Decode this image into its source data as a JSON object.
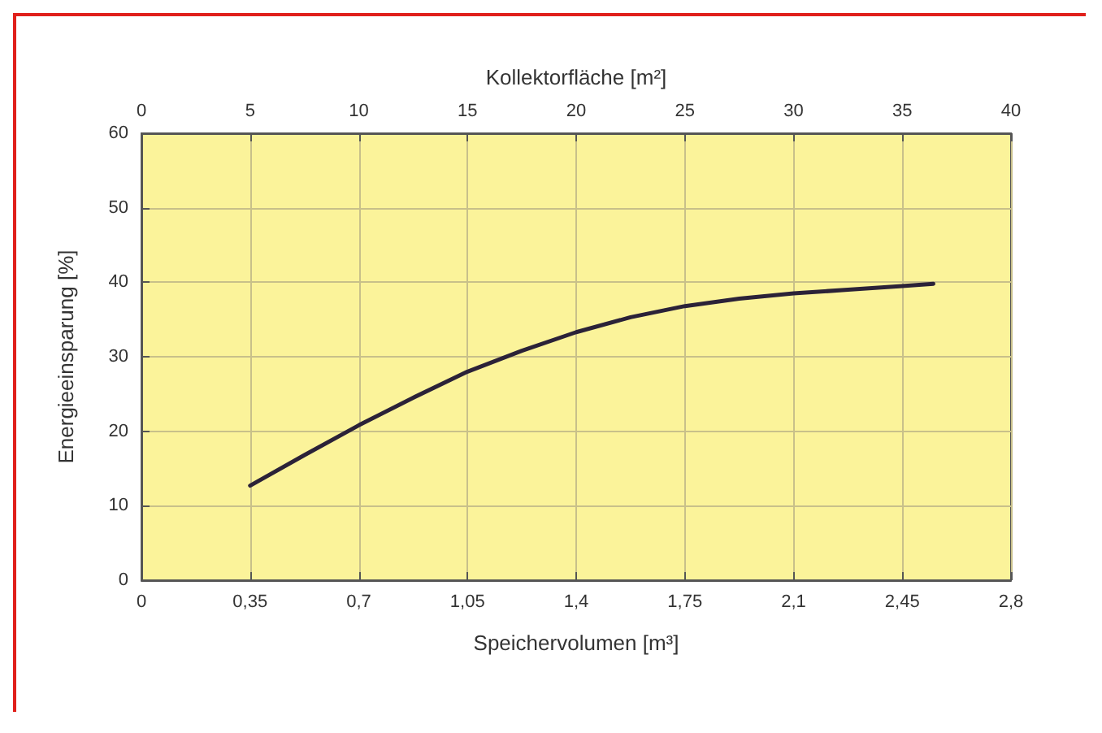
{
  "chart_data": {
    "type": "line",
    "xlabel": "Speichervolumen [m³]",
    "x2label": "Kollektorfläche [m²]",
    "ylabel": "Energieeinsparung [%]",
    "x": [
      0.35,
      0.525,
      0.7,
      0.875,
      1.05,
      1.225,
      1.4,
      1.575,
      1.75,
      1.925,
      2.1,
      2.275,
      2.45,
      2.55
    ],
    "series": [
      {
        "color": "#2b2238",
        "values": [
          12.7,
          16.8,
          20.8,
          24.5,
          28,
          30.8,
          33.3,
          35.3,
          36.8,
          37.8,
          38.5,
          39,
          39.5,
          39.8
        ]
      }
    ],
    "xlim": [
      0,
      2.8
    ],
    "xticks": [
      0,
      {
        "value": 0.35,
        "label": "0,35"
      },
      {
        "value": 0.7,
        "label": "0,7"
      },
      {
        "value": 1.05,
        "label": "1,05"
      },
      {
        "value": 1.4,
        "label": "1,4"
      },
      {
        "value": 1.75,
        "label": "1,75"
      },
      {
        "value": 2.1,
        "label": "2,1"
      },
      {
        "value": 2.45,
        "label": "2,45"
      },
      {
        "value": 2.8,
        "label": "2,8"
      }
    ],
    "x2lim": [
      0,
      40
    ],
    "x2ticks": [
      0,
      5,
      10,
      15,
      20,
      25,
      30,
      35,
      40
    ],
    "ylim": [
      0,
      60
    ],
    "yticks": [
      0,
      10,
      20,
      30,
      40,
      50,
      60
    ],
    "grid": true,
    "marker": "none",
    "line_style": "solid"
  }
}
